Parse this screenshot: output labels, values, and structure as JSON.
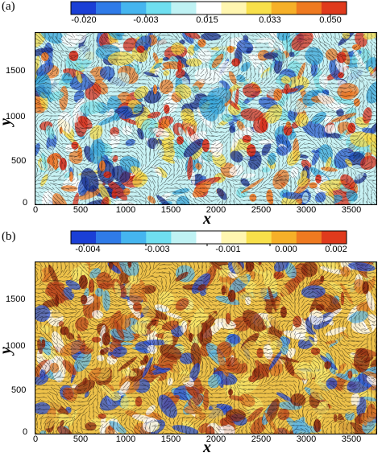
{
  "chart_data": [
    {
      "type": "heatmap",
      "panel_label": "(a)",
      "colorbar": {
        "ticks": [
          "-0.020",
          "-0.003",
          "0.015",
          "0.033",
          "0.050"
        ],
        "range": [
          -0.02,
          0.05
        ],
        "colors": [
          "#1a3fd6",
          "#2f7be8",
          "#45b5ef",
          "#6fdff0",
          "#bff2f4",
          "#ffffff",
          "#fff6b0",
          "#f8e04a",
          "#f6b028",
          "#ef7a20",
          "#e03a1c"
        ]
      },
      "xlabel": "x",
      "ylabel": "y",
      "x_ticks": [
        "0",
        "500",
        "1000",
        "1500",
        "2000",
        "2500",
        "3000",
        "3500"
      ],
      "y_ticks": [
        "0",
        "500",
        "1000",
        "1500"
      ],
      "xlim": [
        0,
        3800
      ],
      "ylim": [
        0,
        1900
      ],
      "field_colors": [
        "#1b2f8c",
        "#2a59c9",
        "#3aa6d9",
        "#7fe0e8",
        "#c8f2f4",
        "#ffffff",
        "#f6d94a",
        "#ee7c2a",
        "#d8301c"
      ],
      "vectors_color": "#000000"
    },
    {
      "type": "heatmap",
      "panel_label": "(b)",
      "colorbar": {
        "ticks": [
          "-0.004",
          "-0.003",
          "-0.001",
          "0.000",
          "0.002"
        ],
        "range": [
          -0.004,
          0.002
        ],
        "colors": [
          "#1a3fd6",
          "#2f7be8",
          "#45b5ef",
          "#6fdff0",
          "#bff2f4",
          "#ffffff",
          "#fff6b0",
          "#f8e04a",
          "#f6b028",
          "#ef7a20",
          "#e03a1c"
        ]
      },
      "xlabel": "x",
      "ylabel": "y",
      "x_ticks": [
        "0",
        "500",
        "1000",
        "1500",
        "2000",
        "2500",
        "3000",
        "3500"
      ],
      "y_ticks": [
        "0",
        "500",
        "1000",
        "1500"
      ],
      "xlim": [
        0,
        3800
      ],
      "ylim": [
        0,
        1900
      ],
      "field_colors": [
        "#2b4fd0",
        "#5fb7e6",
        "#ffffff",
        "#f7e66a",
        "#eec24a",
        "#d97a2a",
        "#b8461e",
        "#8a2a12"
      ],
      "vectors_color": "#000000"
    }
  ]
}
